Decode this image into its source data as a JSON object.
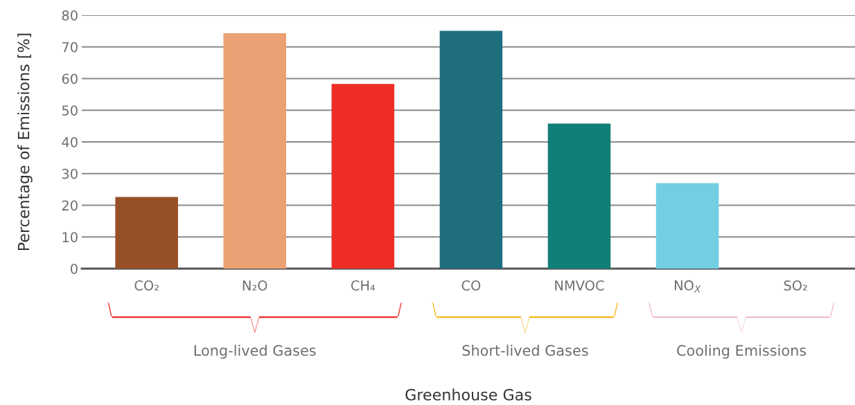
{
  "chart_data": {
    "type": "bar",
    "ylabel": "Percentage of Emissions [%]",
    "categories": [
      "CO₂",
      "N₂O",
      "CH₄",
      "CO",
      "NMVOC",
      "NO$_{X}$",
      "SO₂"
    ],
    "values": [
      22.6,
      74.3,
      58.3,
      75.1,
      45.8,
      27.0,
      0
    ],
    "colors": [
      "#974f27",
      "#eba174",
      "#ee2d26",
      "#1e6e80",
      "#107f77",
      "#74cee3",
      "#cccccc"
    ],
    "ylim": [
      0,
      80
    ],
    "yticks": [
      0,
      10,
      20,
      30,
      40,
      50,
      60,
      70,
      80
    ],
    "grid": "y",
    "annotations": [
      "Long-lived Gases",
      "Short-lived Gases",
      "Cooling Emissions",
      "Greenhouse Gas"
    ]
  }
}
